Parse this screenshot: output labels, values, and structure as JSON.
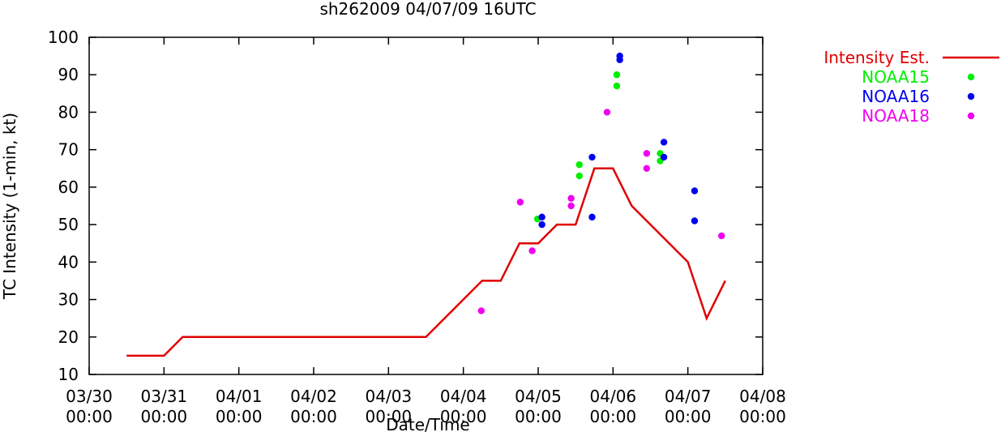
{
  "chart_data": {
    "type": "line",
    "title": "sh262009 04/07/09 16UTC",
    "xlabel": "Date/Time",
    "ylabel": "TC Intensity (1-min, kt)",
    "ylim": [
      10,
      100
    ],
    "xlim": [
      0,
      9
    ],
    "x_unit": "days since 03/30 00:00",
    "grid": false,
    "legend_position": "right",
    "y_ticks": [
      10,
      20,
      30,
      40,
      50,
      60,
      70,
      80,
      90,
      100
    ],
    "x_ticks": [
      {
        "value": 0,
        "line1": "03/30",
        "line2": "00:00"
      },
      {
        "value": 1,
        "line1": "03/31",
        "line2": "00:00"
      },
      {
        "value": 2,
        "line1": "04/01",
        "line2": "00:00"
      },
      {
        "value": 3,
        "line1": "04/02",
        "line2": "00:00"
      },
      {
        "value": 4,
        "line1": "04/03",
        "line2": "00:00"
      },
      {
        "value": 5,
        "line1": "04/04",
        "line2": "00:00"
      },
      {
        "value": 6,
        "line1": "04/05",
        "line2": "00:00"
      },
      {
        "value": 7,
        "line1": "04/06",
        "line2": "00:00"
      },
      {
        "value": 8,
        "line1": "04/07",
        "line2": "00:00"
      },
      {
        "value": 9,
        "line1": "04/08",
        "line2": "00:00"
      }
    ],
    "series": [
      {
        "name": "Intensity Est.",
        "kind": "line",
        "color": "#e00000",
        "points": [
          [
            0.5,
            15
          ],
          [
            1.0,
            15
          ],
          [
            1.25,
            20
          ],
          [
            4.5,
            20
          ],
          [
            5.25,
            35
          ],
          [
            5.5,
            35
          ],
          [
            5.75,
            45
          ],
          [
            6.0,
            45
          ],
          [
            6.25,
            50
          ],
          [
            6.5,
            50
          ],
          [
            6.75,
            65
          ],
          [
            7.0,
            65
          ],
          [
            7.25,
            55
          ],
          [
            8.0,
            40
          ],
          [
            8.25,
            25
          ],
          [
            8.5,
            35
          ]
        ]
      },
      {
        "name": "NOAA15",
        "kind": "scatter",
        "color": "#00ee00",
        "points": [
          [
            5.99,
            51.5
          ],
          [
            6.55,
            66
          ],
          [
            6.55,
            63
          ],
          [
            7.05,
            90
          ],
          [
            7.05,
            87
          ],
          [
            7.63,
            69
          ],
          [
            7.63,
            67
          ]
        ]
      },
      {
        "name": "NOAA16",
        "kind": "scatter",
        "color": "#0000f0",
        "points": [
          [
            6.05,
            52
          ],
          [
            6.05,
            50
          ],
          [
            6.72,
            68
          ],
          [
            6.72,
            52
          ],
          [
            7.09,
            95
          ],
          [
            7.09,
            94
          ],
          [
            7.68,
            72
          ],
          [
            7.68,
            68
          ],
          [
            8.09,
            59
          ],
          [
            8.09,
            51
          ]
        ]
      },
      {
        "name": "NOAA18",
        "kind": "scatter",
        "color": "#f000f0",
        "points": [
          [
            5.24,
            27
          ],
          [
            5.76,
            56
          ],
          [
            5.92,
            43
          ],
          [
            6.44,
            57
          ],
          [
            6.44,
            55
          ],
          [
            6.92,
            80
          ],
          [
            7.45,
            69
          ],
          [
            7.45,
            65
          ],
          [
            8.45,
            47
          ]
        ]
      }
    ]
  }
}
